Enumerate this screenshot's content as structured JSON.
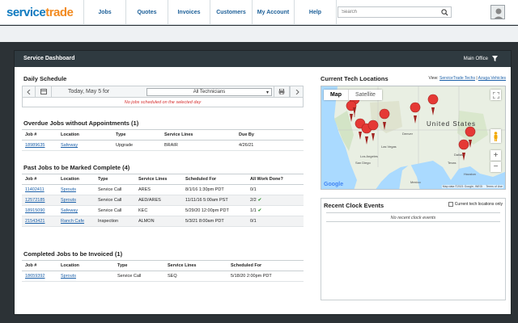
{
  "brand": {
    "service": "service",
    "trade": "trade"
  },
  "nav": [
    "Jobs",
    "Quotes",
    "Invoices",
    "Customers",
    "My Account",
    "Help"
  ],
  "search": {
    "placeholder": "Search"
  },
  "dashboard": {
    "title": "Service Dashboard",
    "office": "Main Office"
  },
  "daily_schedule": {
    "heading": "Daily Schedule",
    "date": "Today, May 5 for",
    "technician": "All Technicians",
    "empty": "No jobs scheduled on the selected day"
  },
  "overdue": {
    "heading": "Overdue Jobs without Appointments (1)",
    "columns": [
      "Job #",
      "Location",
      "Type",
      "Service Lines",
      "Due By"
    ],
    "rows": [
      {
        "job": "18989635",
        "location": "Safeway",
        "type": "Upgrade",
        "lines": "BRAIR",
        "due": "4/26/21"
      }
    ]
  },
  "past_jobs": {
    "heading": "Past Jobs to be Marked Complete (4)",
    "columns": [
      "Job #",
      "Location",
      "Type",
      "Service Lines",
      "Scheduled For",
      "All Work Done?"
    ],
    "rows": [
      {
        "job": "11402411",
        "location": "Sprouts",
        "type": "Service Call",
        "lines": "ARES",
        "scheduled": "8/1/16 1:30pm PDT",
        "done": "0/1",
        "check": false
      },
      {
        "job": "12572185",
        "location": "Sprouts",
        "type": "Service Call",
        "lines": "AED/ARES",
        "scheduled": "11/11/16 5:00am PST",
        "done": "2/2",
        "check": true
      },
      {
        "job": "18915090",
        "location": "Safeway",
        "type": "Service Call",
        "lines": "KEC",
        "scheduled": "5/29/20 12:00pm PDT",
        "done": "1/1",
        "check": true
      },
      {
        "job": "21543421",
        "location": "Ranch Cafe",
        "type": "Inspection",
        "lines": "ALMON",
        "scheduled": "5/3/21 8:00am PDT",
        "done": "0/1",
        "check": false
      }
    ]
  },
  "completed": {
    "heading": "Completed Jobs to be Invoiced (1)",
    "columns": [
      "Job #",
      "Location",
      "Type",
      "Service Lines",
      "Scheduled For"
    ],
    "rows": [
      {
        "job": "18659392",
        "location": "Sprouts",
        "type": "Service Call",
        "lines": "SEQ",
        "scheduled": "5/18/20 2:00pm PDT"
      }
    ]
  },
  "tech_locations": {
    "heading": "Current Tech Locations",
    "view_label": "View:",
    "link1": "ServiceTrade Techs",
    "separator": "|",
    "link2": "Azuga Vehicles",
    "map_tab": "Map",
    "satellite_tab": "Satellite",
    "country_label": "United States",
    "city_labels": [
      "Las Vegas",
      "Los Angeles",
      "San Diego",
      "Houston",
      "Dallas",
      "Denver",
      "Texas",
      "Mexico"
    ],
    "google": "Google",
    "map_footer": "Map data ©2021 Google, INEGI",
    "terms": "Terms of Use"
  },
  "clock": {
    "heading": "Recent Clock Events",
    "option": "Current tech locations only",
    "empty": "No recent clock events"
  },
  "colors": {
    "brand_blue": "#0f7abf",
    "brand_orange": "#f28a1f",
    "pin_red": "#e53935",
    "header_dark": "#2f3a40"
  }
}
